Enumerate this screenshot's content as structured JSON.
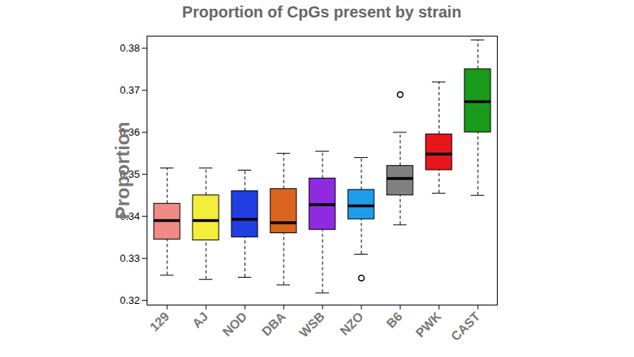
{
  "chart_data": {
    "type": "box",
    "title": "Proportion of CpGs present by strain",
    "y_label": "Proportion",
    "categories": [
      "129",
      "AJ",
      "NOD",
      "DBA",
      "WSB",
      "NZO",
      "B6",
      "PWK",
      "CAST"
    ],
    "colors": [
      "#f08a84",
      "#f2ee3a",
      "#1f3fe0",
      "#d9651f",
      "#8e2be0",
      "#1e9ee8",
      "#808080",
      "#e8161b",
      "#1a9a1a"
    ],
    "whisker_low": [
      0.326,
      0.325,
      0.3255,
      0.3237,
      0.3218,
      0.331,
      0.338,
      0.3455,
      0.345
    ],
    "q1": [
      0.3345,
      0.3343,
      0.335,
      0.336,
      0.3368,
      0.3393,
      0.345,
      0.351,
      0.36
    ],
    "median": [
      0.339,
      0.339,
      0.3393,
      0.3385,
      0.3428,
      0.3425,
      0.349,
      0.3548,
      0.3673
    ],
    "q3": [
      0.343,
      0.345,
      0.346,
      0.3465,
      0.349,
      0.3463,
      0.352,
      0.3595,
      0.375
    ],
    "whisker_high": [
      0.3515,
      0.3515,
      0.351,
      0.355,
      0.3555,
      0.354,
      0.36,
      0.372,
      0.382
    ],
    "outliers": [
      [],
      [],
      [],
      [],
      [],
      [
        0.3253
      ],
      [
        0.369
      ],
      [],
      []
    ],
    "ylim": [
      0.3189,
      0.3829
    ],
    "yticks": [
      0.32,
      0.33,
      0.34,
      0.35,
      0.36,
      0.37,
      0.38
    ],
    "grid": false
  }
}
